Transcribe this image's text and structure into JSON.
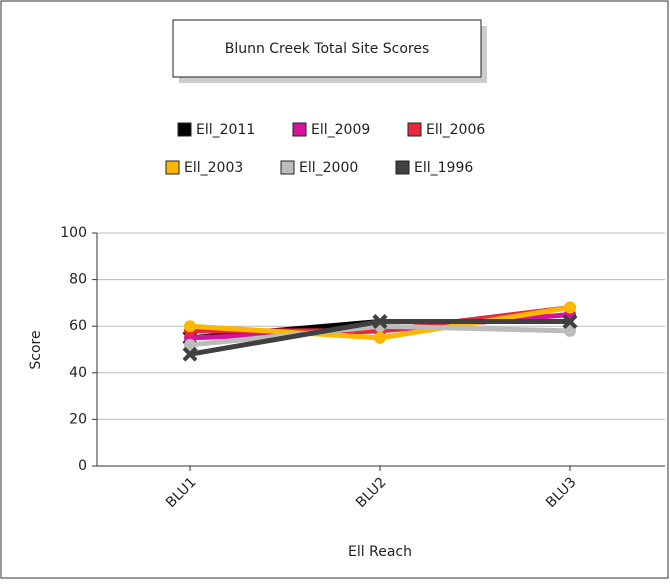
{
  "chart_data": {
    "type": "line",
    "title": "Blunn Creek Total Site Scores",
    "x_label": "Ell Reach",
    "y_label": "Score",
    "categories": [
      "BLU1",
      "BLU2",
      "BLU3"
    ],
    "series": [
      {
        "name": "Ell_2011",
        "color": "#000000",
        "values": [
          55,
          62,
          62
        ]
      },
      {
        "name": "Ell_2009",
        "color": "#d4149c",
        "values": [
          55,
          58,
          65
        ]
      },
      {
        "name": "Ell_2006",
        "color": "#e8283c",
        "values": [
          58,
          58,
          68
        ]
      },
      {
        "name": "Ell_2003",
        "color": "#fcb800",
        "values": [
          60,
          55,
          68
        ]
      },
      {
        "name": "Ell_2000",
        "color": "#bcbcbc",
        "values": [
          52,
          60,
          58
        ]
      },
      {
        "name": "Ell_1996",
        "color": "#404040",
        "values": [
          48,
          62,
          62
        ]
      }
    ],
    "ylim": [
      0,
      100
    ],
    "yticks": [
      0,
      20,
      40,
      60,
      80,
      100
    ],
    "grid": true
  }
}
